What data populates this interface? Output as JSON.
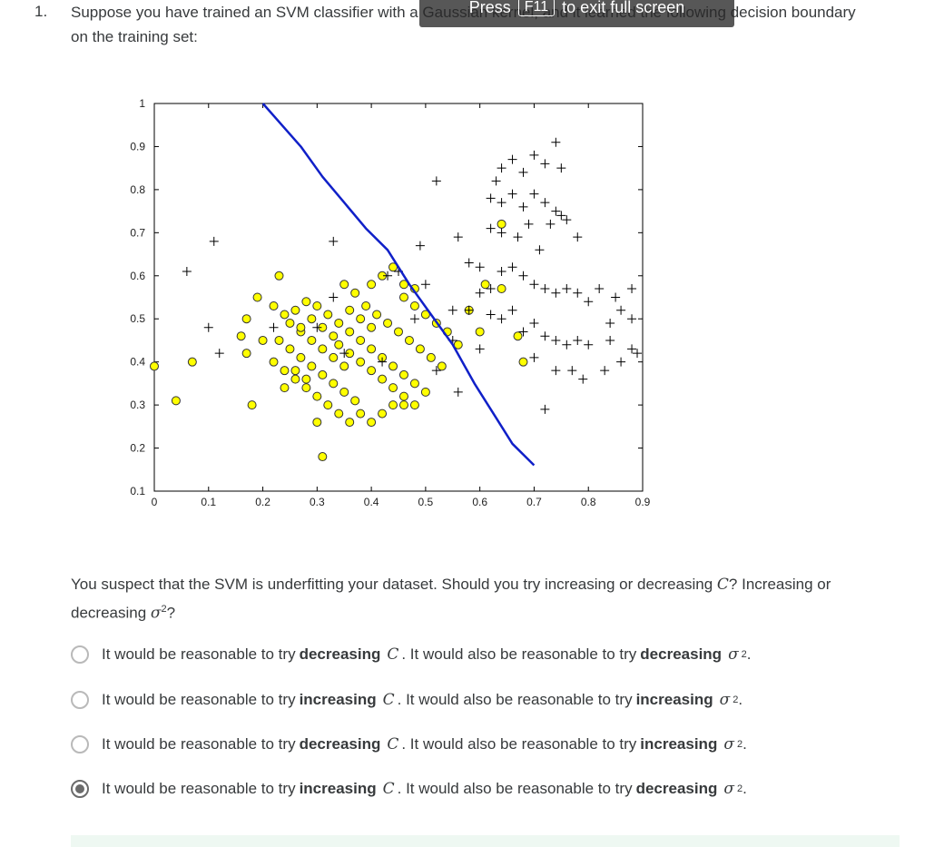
{
  "question": {
    "number": "1.",
    "text": "Suppose you have trained an SVM classifier with a Gaussian kernel, and it learned the following decision boundary on the training set:",
    "followup_prefix": "You suspect that the SVM is underfitting your dataset. Should you try increasing or decreasing ",
    "followup_c": "C",
    "followup_mid": "? Increasing or decreasing ",
    "followup_sigma": "σ",
    "followup_sup": "2",
    "followup_suffix": "?"
  },
  "fullscreen_banner": {
    "prefix": "Press",
    "key": "F11",
    "suffix": "to exit full screen"
  },
  "options": [
    {
      "text_a": "It would be reasonable to try",
      "verb1": "decreasing",
      "var1": "C",
      "text_b": ". It would also be reasonable to try",
      "verb2": "decreasing",
      "var2": "σ",
      "sup": "2",
      "end": ".",
      "selected": false
    },
    {
      "text_a": "It would be reasonable to try",
      "verb1": "increasing",
      "var1": "C",
      "text_b": ". It would also be reasonable to try",
      "verb2": "increasing",
      "var2": "σ",
      "sup": "2",
      "end": ".",
      "selected": false
    },
    {
      "text_a": "It would be reasonable to try",
      "verb1": "decreasing",
      "var1": "C",
      "text_b": ". It would also be reasonable to try",
      "verb2": "increasing",
      "var2": "σ",
      "sup": "2",
      "end": ".",
      "selected": false
    },
    {
      "text_a": "It would be reasonable to try",
      "verb1": "increasing",
      "var1": "C",
      "text_b": ". It would also be reasonable to try",
      "verb2": "decreasing",
      "var2": "σ",
      "sup": "2",
      "end": ".",
      "selected": true
    }
  ],
  "colors": {
    "positive_marker": "#000000",
    "negative_fill": "#ffff00",
    "boundary": "#1020c8"
  },
  "chart_data": {
    "type": "scatter",
    "title": "",
    "xlabel": "",
    "ylabel": "",
    "xlim": [
      0,
      0.9
    ],
    "ylim": [
      0.1,
      1
    ],
    "xticks": [
      "0",
      "0.1",
      "0.2",
      "0.3",
      "0.4",
      "0.5",
      "0.6",
      "0.7",
      "0.8",
      "0.9"
    ],
    "yticks": [
      "0.1",
      "0.2",
      "0.3",
      "0.4",
      "0.5",
      "0.6",
      "0.7",
      "0.8",
      "0.9",
      "1"
    ],
    "series": [
      {
        "marker": "plus",
        "points": [
          [
            0.06,
            0.61
          ],
          [
            0.11,
            0.68
          ],
          [
            0.1,
            0.48
          ],
          [
            0.12,
            0.42
          ],
          [
            0.33,
            0.68
          ],
          [
            0.49,
            0.67
          ],
          [
            0.56,
            0.69
          ],
          [
            0.52,
            0.82
          ],
          [
            0.63,
            0.82
          ],
          [
            0.64,
            0.85
          ],
          [
            0.66,
            0.87
          ],
          [
            0.68,
            0.84
          ],
          [
            0.7,
            0.88
          ],
          [
            0.72,
            0.86
          ],
          [
            0.74,
            0.91
          ],
          [
            0.75,
            0.85
          ],
          [
            0.62,
            0.78
          ],
          [
            0.64,
            0.77
          ],
          [
            0.66,
            0.79
          ],
          [
            0.68,
            0.76
          ],
          [
            0.7,
            0.79
          ],
          [
            0.72,
            0.77
          ],
          [
            0.74,
            0.75
          ],
          [
            0.76,
            0.73
          ],
          [
            0.62,
            0.71
          ],
          [
            0.64,
            0.7
          ],
          [
            0.67,
            0.69
          ],
          [
            0.69,
            0.72
          ],
          [
            0.71,
            0.66
          ],
          [
            0.73,
            0.72
          ],
          [
            0.75,
            0.74
          ],
          [
            0.78,
            0.69
          ],
          [
            0.58,
            0.63
          ],
          [
            0.6,
            0.62
          ],
          [
            0.62,
            0.57
          ],
          [
            0.64,
            0.61
          ],
          [
            0.66,
            0.62
          ],
          [
            0.68,
            0.6
          ],
          [
            0.7,
            0.58
          ],
          [
            0.72,
            0.57
          ],
          [
            0.74,
            0.56
          ],
          [
            0.76,
            0.57
          ],
          [
            0.78,
            0.56
          ],
          [
            0.8,
            0.54
          ],
          [
            0.82,
            0.57
          ],
          [
            0.85,
            0.55
          ],
          [
            0.88,
            0.57
          ],
          [
            0.86,
            0.52
          ],
          [
            0.84,
            0.49
          ],
          [
            0.88,
            0.5
          ],
          [
            0.62,
            0.51
          ],
          [
            0.64,
            0.5
          ],
          [
            0.66,
            0.52
          ],
          [
            0.68,
            0.47
          ],
          [
            0.7,
            0.49
          ],
          [
            0.72,
            0.46
          ],
          [
            0.74,
            0.45
          ],
          [
            0.76,
            0.44
          ],
          [
            0.78,
            0.45
          ],
          [
            0.8,
            0.44
          ],
          [
            0.84,
            0.45
          ],
          [
            0.88,
            0.43
          ],
          [
            0.7,
            0.41
          ],
          [
            0.74,
            0.38
          ],
          [
            0.77,
            0.38
          ],
          [
            0.79,
            0.36
          ],
          [
            0.83,
            0.38
          ],
          [
            0.86,
            0.4
          ],
          [
            0.89,
            0.42
          ],
          [
            0.6,
            0.56
          ],
          [
            0.58,
            0.52
          ],
          [
            0.55,
            0.45
          ],
          [
            0.56,
            0.33
          ],
          [
            0.52,
            0.38
          ],
          [
            0.48,
            0.5
          ],
          [
            0.45,
            0.61
          ],
          [
            0.43,
            0.6
          ],
          [
            0.42,
            0.4
          ],
          [
            0.35,
            0.42
          ],
          [
            0.3,
            0.48
          ],
          [
            0.22,
            0.48
          ],
          [
            0.33,
            0.55
          ],
          [
            0.5,
            0.58
          ],
          [
            0.72,
            0.29
          ],
          [
            0.6,
            0.43
          ],
          [
            0.55,
            0.52
          ]
        ]
      },
      {
        "marker": "circle-yellow",
        "points": [
          [
            0.0,
            0.39
          ],
          [
            0.07,
            0.4
          ],
          [
            0.04,
            0.31
          ],
          [
            0.18,
            0.3
          ],
          [
            0.17,
            0.42
          ],
          [
            0.16,
            0.46
          ],
          [
            0.17,
            0.5
          ],
          [
            0.19,
            0.55
          ],
          [
            0.22,
            0.53
          ],
          [
            0.24,
            0.51
          ],
          [
            0.25,
            0.49
          ],
          [
            0.27,
            0.47
          ],
          [
            0.29,
            0.45
          ],
          [
            0.31,
            0.43
          ],
          [
            0.33,
            0.41
          ],
          [
            0.35,
            0.39
          ],
          [
            0.23,
            0.45
          ],
          [
            0.25,
            0.43
          ],
          [
            0.27,
            0.41
          ],
          [
            0.29,
            0.39
          ],
          [
            0.31,
            0.37
          ],
          [
            0.33,
            0.35
          ],
          [
            0.35,
            0.33
          ],
          [
            0.37,
            0.31
          ],
          [
            0.22,
            0.4
          ],
          [
            0.24,
            0.38
          ],
          [
            0.26,
            0.36
          ],
          [
            0.28,
            0.34
          ],
          [
            0.3,
            0.32
          ],
          [
            0.32,
            0.3
          ],
          [
            0.34,
            0.28
          ],
          [
            0.36,
            0.26
          ],
          [
            0.23,
            0.6
          ],
          [
            0.26,
            0.52
          ],
          [
            0.28,
            0.54
          ],
          [
            0.3,
            0.53
          ],
          [
            0.32,
            0.51
          ],
          [
            0.34,
            0.49
          ],
          [
            0.36,
            0.47
          ],
          [
            0.38,
            0.45
          ],
          [
            0.4,
            0.43
          ],
          [
            0.42,
            0.41
          ],
          [
            0.44,
            0.39
          ],
          [
            0.46,
            0.37
          ],
          [
            0.48,
            0.35
          ],
          [
            0.5,
            0.33
          ],
          [
            0.39,
            0.53
          ],
          [
            0.41,
            0.51
          ],
          [
            0.43,
            0.49
          ],
          [
            0.45,
            0.47
          ],
          [
            0.47,
            0.45
          ],
          [
            0.49,
            0.43
          ],
          [
            0.51,
            0.41
          ],
          [
            0.53,
            0.39
          ],
          [
            0.35,
            0.58
          ],
          [
            0.37,
            0.56
          ],
          [
            0.4,
            0.58
          ],
          [
            0.42,
            0.6
          ],
          [
            0.44,
            0.62
          ],
          [
            0.46,
            0.55
          ],
          [
            0.48,
            0.53
          ],
          [
            0.5,
            0.51
          ],
          [
            0.52,
            0.49
          ],
          [
            0.54,
            0.47
          ],
          [
            0.56,
            0.44
          ],
          [
            0.58,
            0.52
          ],
          [
            0.6,
            0.47
          ],
          [
            0.61,
            0.58
          ],
          [
            0.64,
            0.57
          ],
          [
            0.67,
            0.46
          ],
          [
            0.68,
            0.4
          ],
          [
            0.64,
            0.72
          ],
          [
            0.3,
            0.26
          ],
          [
            0.31,
            0.18
          ],
          [
            0.38,
            0.28
          ],
          [
            0.4,
            0.26
          ],
          [
            0.42,
            0.28
          ],
          [
            0.44,
            0.3
          ],
          [
            0.46,
            0.3
          ],
          [
            0.48,
            0.3
          ],
          [
            0.36,
            0.52
          ],
          [
            0.38,
            0.5
          ],
          [
            0.4,
            0.48
          ],
          [
            0.34,
            0.44
          ],
          [
            0.36,
            0.42
          ],
          [
            0.38,
            0.4
          ],
          [
            0.4,
            0.38
          ],
          [
            0.42,
            0.36
          ],
          [
            0.44,
            0.34
          ],
          [
            0.46,
            0.32
          ],
          [
            0.27,
            0.48
          ],
          [
            0.29,
            0.5
          ],
          [
            0.31,
            0.48
          ],
          [
            0.33,
            0.46
          ],
          [
            0.46,
            0.58
          ],
          [
            0.48,
            0.57
          ],
          [
            0.26,
            0.38
          ],
          [
            0.28,
            0.36
          ],
          [
            0.24,
            0.34
          ],
          [
            0.2,
            0.45
          ]
        ]
      }
    ],
    "boundary": {
      "label": "",
      "points": [
        [
          0.2,
          1.0
        ],
        [
          0.27,
          0.9
        ],
        [
          0.31,
          0.83
        ],
        [
          0.35,
          0.77
        ],
        [
          0.39,
          0.71
        ],
        [
          0.43,
          0.66
        ],
        [
          0.47,
          0.58
        ],
        [
          0.51,
          0.51
        ],
        [
          0.55,
          0.44
        ],
        [
          0.59,
          0.35
        ],
        [
          0.63,
          0.27
        ],
        [
          0.66,
          0.21
        ],
        [
          0.7,
          0.16
        ]
      ]
    }
  }
}
